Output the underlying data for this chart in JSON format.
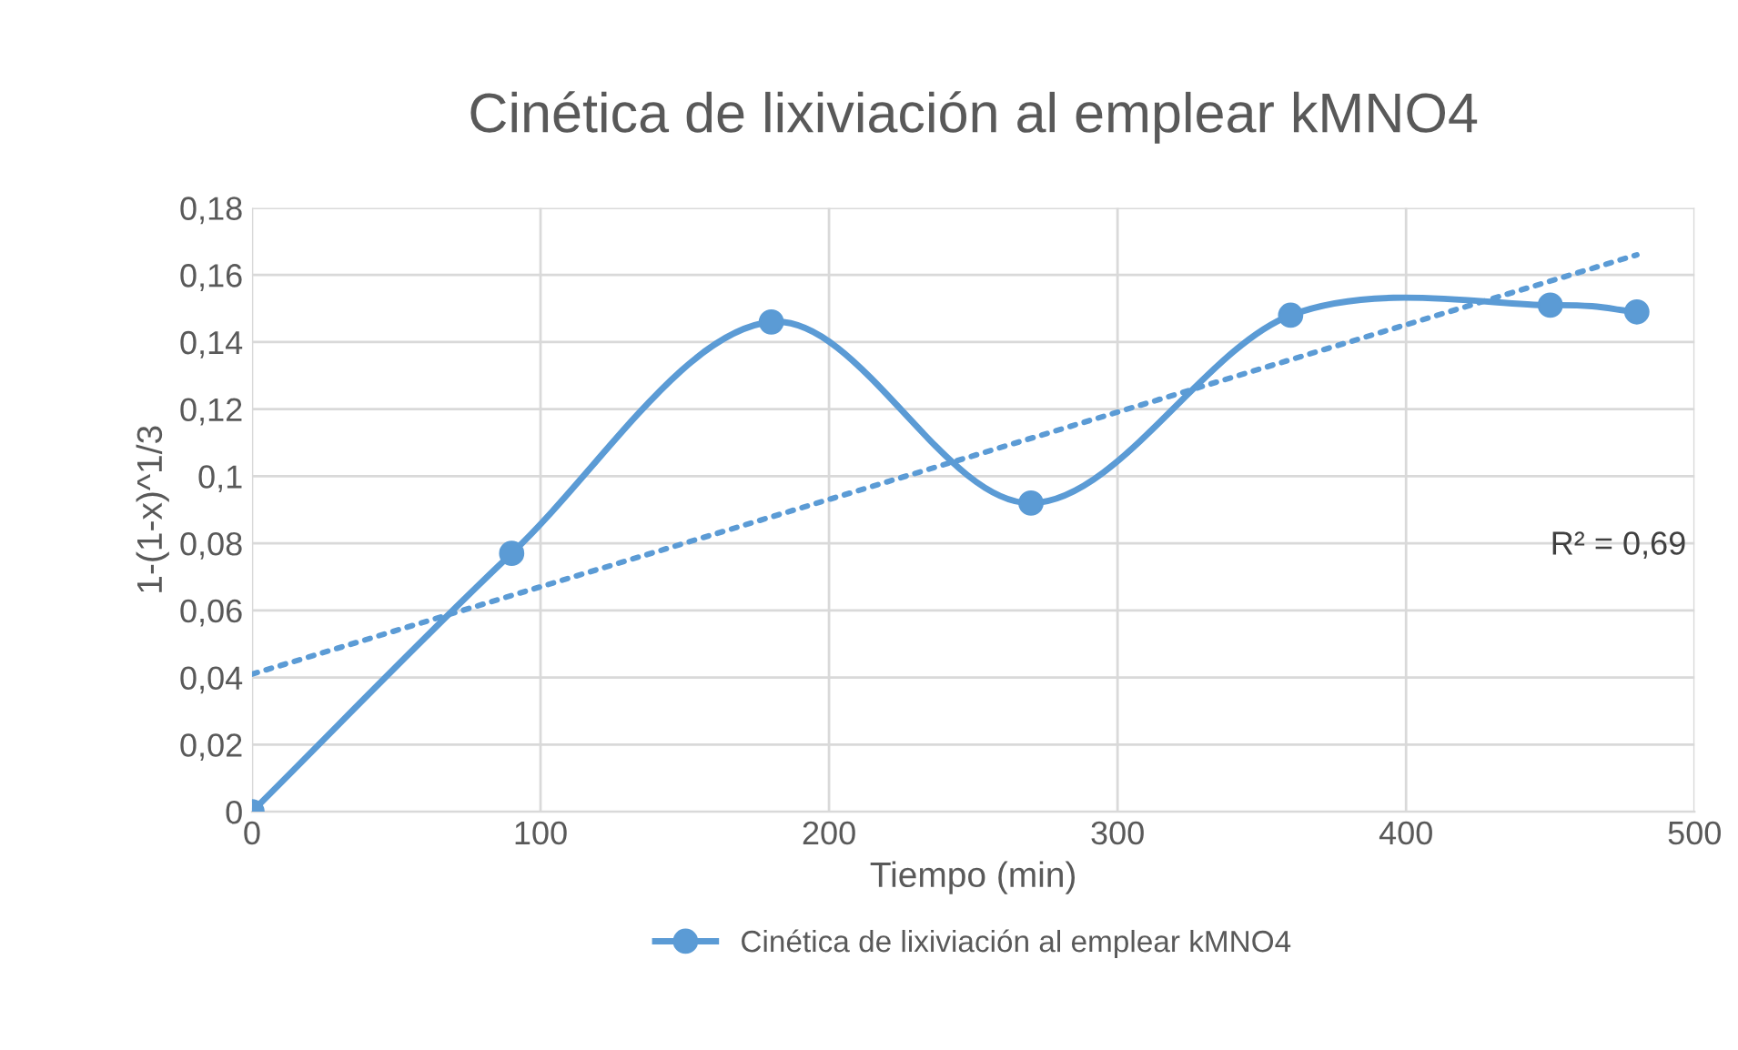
{
  "chart_data": {
    "type": "line",
    "title": "Cinética de lixiviación al emplear kMNO4",
    "xlabel": "Tiempo (min)",
    "ylabel": "1-(1-x)^1/3",
    "series": [
      {
        "name": "Cinética de lixiviación al emplear kMNO4",
        "color": "#5b9bd5",
        "x": [
          0,
          90,
          180,
          270,
          360,
          450,
          480
        ],
        "values": [
          0,
          0.077,
          0.146,
          0.092,
          0.148,
          0.151,
          0.149
        ],
        "marker": "circle",
        "line_style": "solid"
      },
      {
        "color": "#5b9bd5",
        "x": [
          0,
          480
        ],
        "values": [
          0.041,
          0.166
        ],
        "marker": "none",
        "line_style": "dotted"
      }
    ],
    "annotations": [
      "R² = 0,69"
    ],
    "xlim": [
      0,
      500
    ],
    "xticks": [
      0,
      100,
      200,
      300,
      400,
      500
    ],
    "ylim": [
      0,
      0.18
    ],
    "yticks": [
      {
        "value": 0,
        "label": "0"
      },
      {
        "value": 0.02,
        "label": "0,02"
      },
      {
        "value": 0.04,
        "label": "0,04"
      },
      {
        "value": 0.06,
        "label": "0,06"
      },
      {
        "value": 0.08,
        "label": "0,08"
      },
      {
        "value": 0.1,
        "label": "0,1"
      },
      {
        "value": 0.12,
        "label": "0,12"
      },
      {
        "value": 0.14,
        "label": "0,14"
      },
      {
        "value": 0.16,
        "label": "0,16"
      },
      {
        "value": 0.18,
        "label": "0,18"
      }
    ],
    "grid": true,
    "legend": "bottom"
  }
}
